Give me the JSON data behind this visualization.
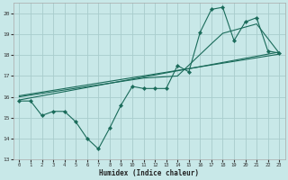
{
  "xlabel": "Humidex (Indice chaleur)",
  "background_color": "#c8e8e8",
  "grid_color": "#a8cccc",
  "line_color": "#1a6b5a",
  "xlim": [
    -0.5,
    23.5
  ],
  "ylim": [
    13,
    20.5
  ],
  "yticks": [
    13,
    14,
    15,
    16,
    17,
    18,
    19,
    20
  ],
  "xticks": [
    0,
    1,
    2,
    3,
    4,
    5,
    6,
    7,
    8,
    9,
    10,
    11,
    12,
    13,
    14,
    15,
    16,
    17,
    18,
    19,
    20,
    21,
    22,
    23
  ],
  "series0": {
    "x": [
      0,
      1,
      2,
      3,
      4,
      5,
      6,
      7,
      8,
      9,
      10,
      11,
      12,
      13,
      14,
      15,
      16,
      17,
      18,
      19,
      20,
      21,
      22,
      23
    ],
    "y": [
      15.8,
      15.8,
      15.1,
      15.3,
      15.3,
      14.8,
      14.0,
      13.5,
      14.5,
      15.6,
      16.5,
      16.4,
      16.4,
      16.4,
      17.5,
      17.2,
      19.1,
      20.2,
      20.3,
      18.7,
      19.6,
      19.8,
      18.2,
      18.1
    ]
  },
  "series1": {
    "x": [
      0,
      23
    ],
    "y": [
      15.85,
      18.15
    ]
  },
  "series2": {
    "x": [
      0,
      23
    ],
    "y": [
      16.05,
      18.05
    ]
  },
  "series3": {
    "x": [
      0,
      11,
      14,
      17,
      18,
      21,
      23
    ],
    "y": [
      16.0,
      16.9,
      17.0,
      18.55,
      19.05,
      19.5,
      18.1
    ]
  }
}
